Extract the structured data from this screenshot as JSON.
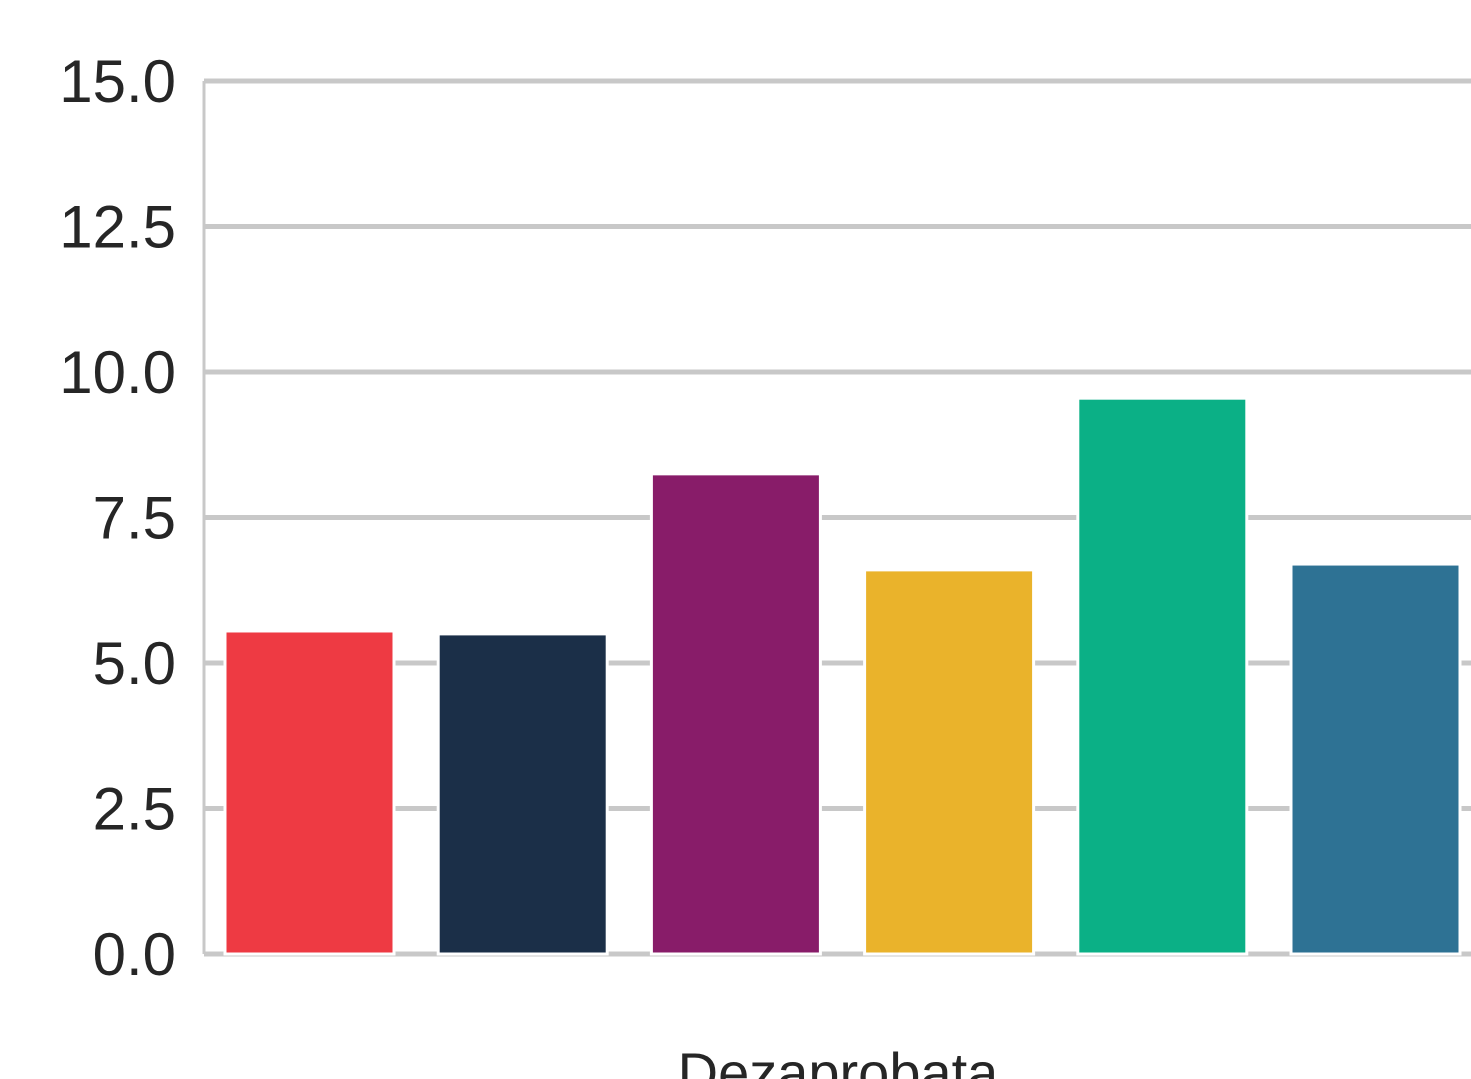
{
  "chart_data": {
    "type": "bar",
    "categories": [
      "Dezaprobata"
    ],
    "series": [
      {
        "values": [
          5.55
        ],
        "color": "#ee3a43"
      },
      {
        "values": [
          5.5
        ],
        "color": "#1b2f48"
      },
      {
        "values": [
          8.25
        ],
        "color": "#881c69"
      },
      {
        "values": [
          6.6
        ],
        "color": "#eab32b"
      },
      {
        "values": [
          9.55
        ],
        "color": "#0bb086"
      },
      {
        "values": [
          6.7
        ],
        "color": "#2e7294"
      }
    ],
    "ylim": [
      0,
      15
    ],
    "yticks": [
      "0.0",
      "2.5",
      "5.0",
      "7.5",
      "10.0",
      "12.5",
      "15.0"
    ],
    "grid": true,
    "grid_color": "#c8c8c8",
    "title": "",
    "xlabel": "",
    "ylabel": ""
  }
}
